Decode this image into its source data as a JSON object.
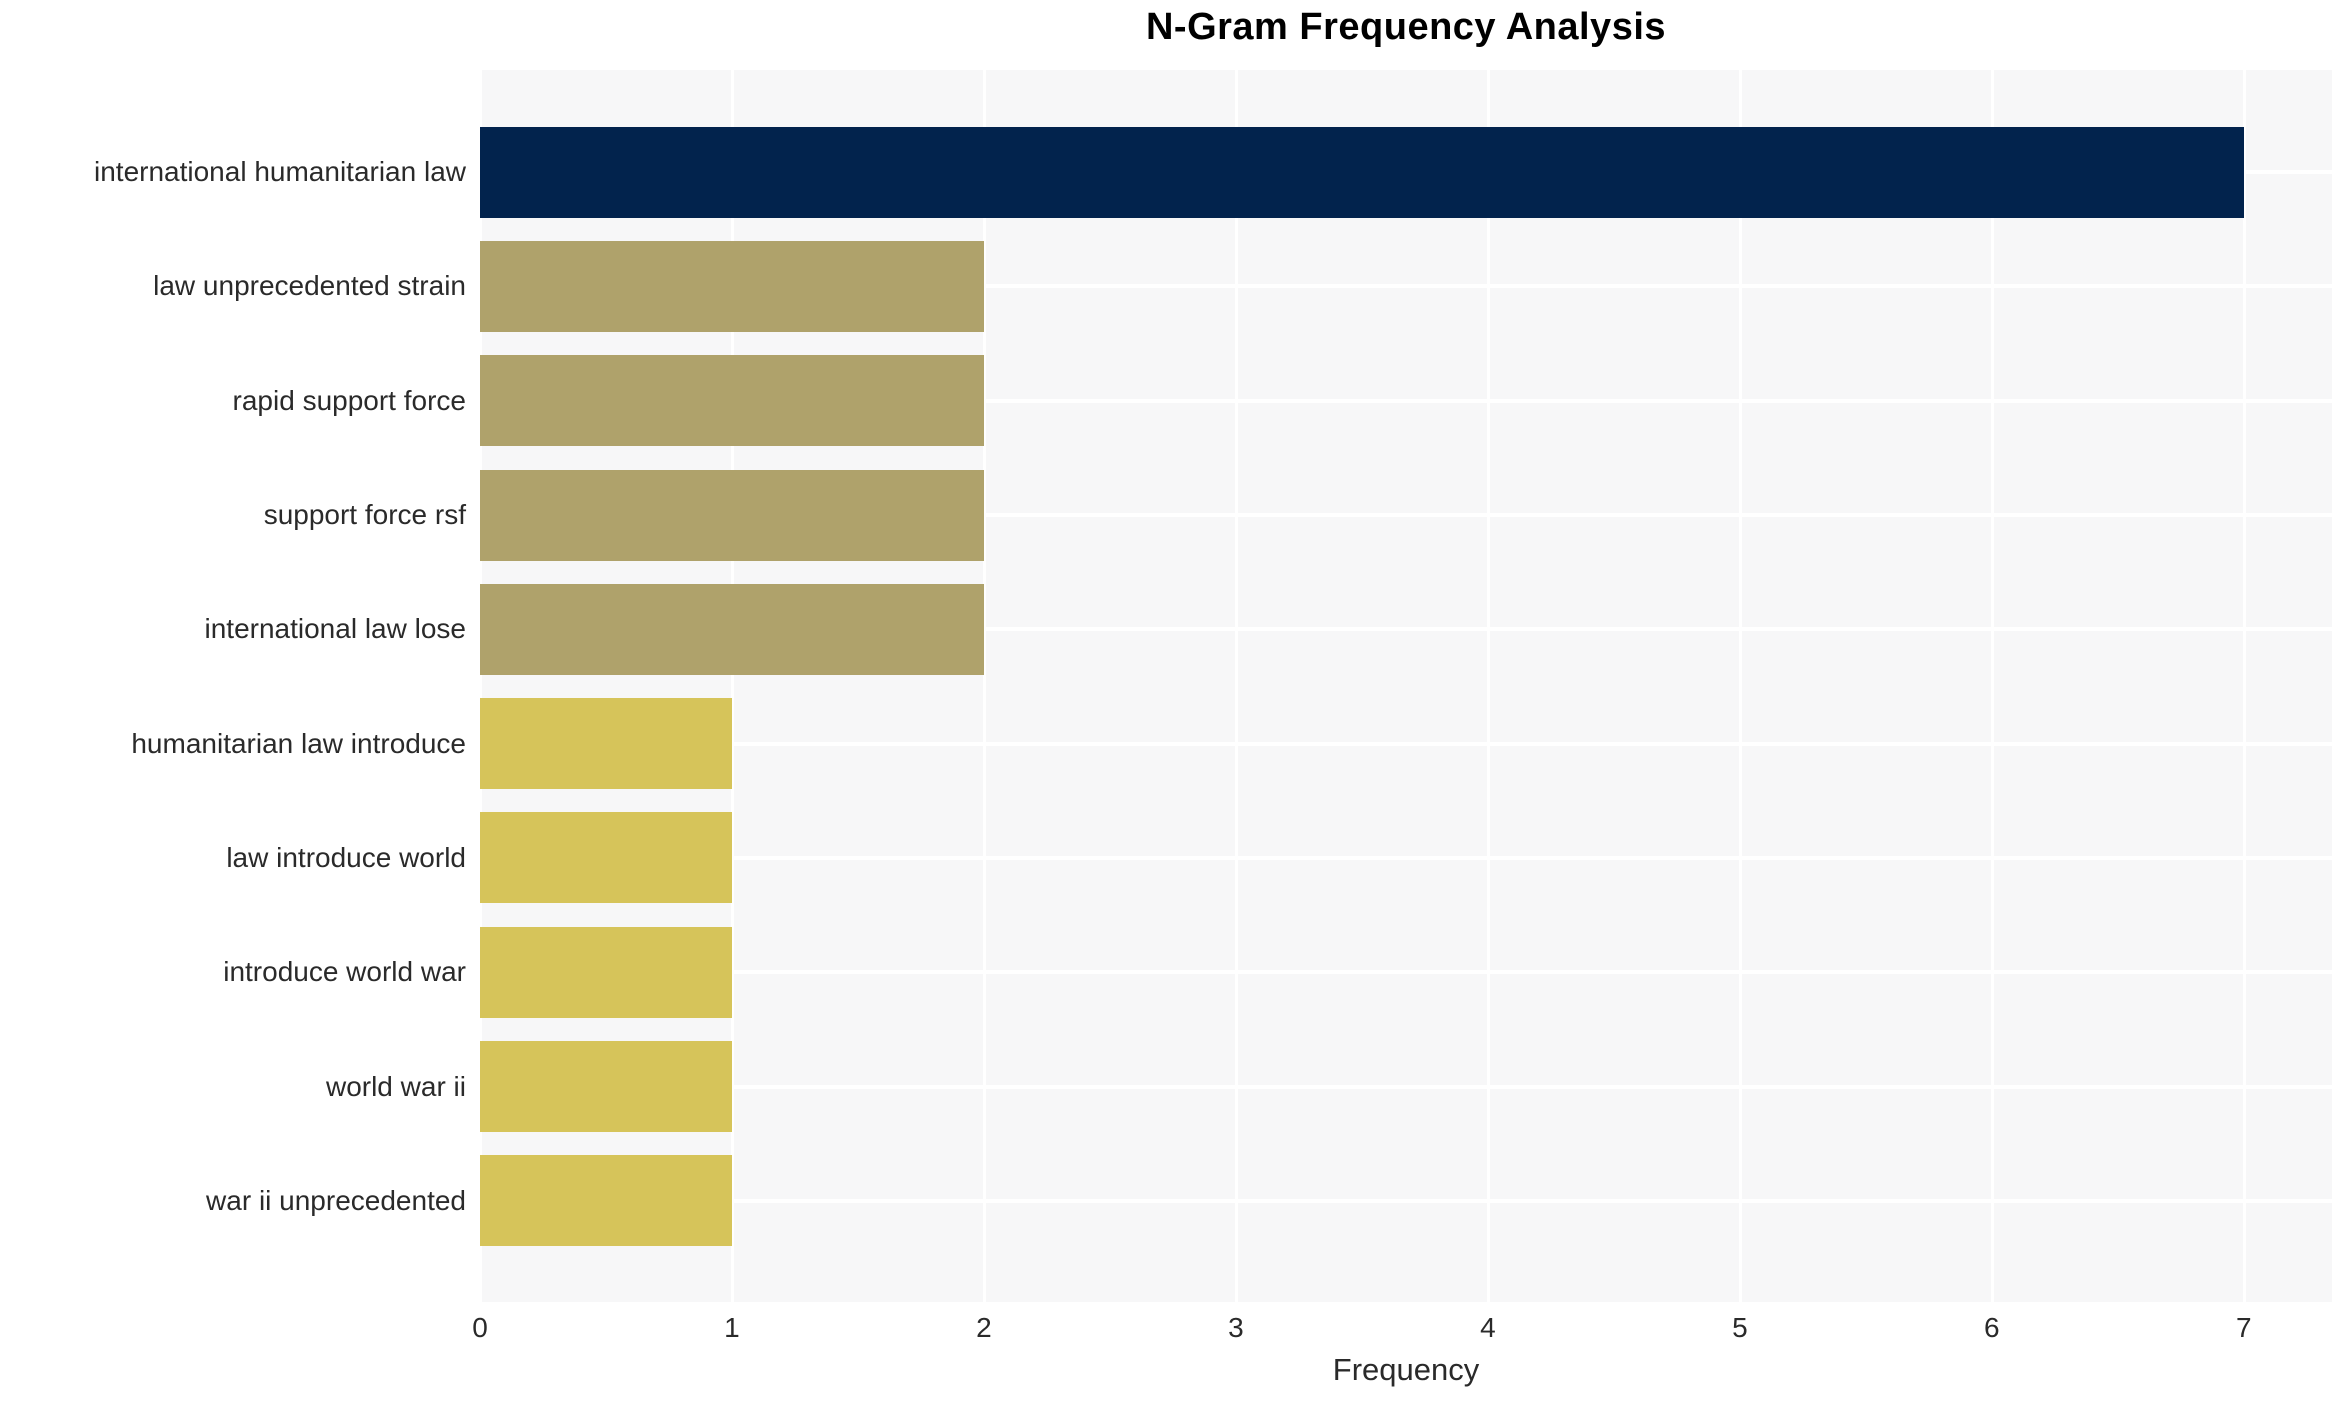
{
  "chart_data": {
    "type": "bar",
    "orientation": "horizontal",
    "title": "N-Gram Frequency Analysis",
    "xlabel": "Frequency",
    "ylabel": "",
    "categories": [
      "international humanitarian law",
      "law unprecedented strain",
      "rapid support force",
      "support force rsf",
      "international law lose",
      "humanitarian law introduce",
      "law introduce world",
      "introduce world war",
      "world war ii",
      "war ii unprecedented"
    ],
    "values": [
      7,
      2,
      2,
      2,
      2,
      1,
      1,
      1,
      1,
      1
    ],
    "bar_colors": [
      "#02234D",
      "#AFA26B",
      "#AFA26B",
      "#AFA26B",
      "#AFA26B",
      "#D6C45A",
      "#D6C45A",
      "#D6C45A",
      "#D6C45A",
      "#D6C45A"
    ],
    "xticks": [
      0,
      1,
      2,
      3,
      4,
      5,
      6,
      7
    ],
    "xlim": [
      0,
      7.35
    ],
    "grid": true,
    "legend": false,
    "colors": {
      "plot_background": "#F7F7F8",
      "gridline": "#FFFFFF",
      "tick_text": "#2A2A2A",
      "title_text": "#000000"
    }
  }
}
